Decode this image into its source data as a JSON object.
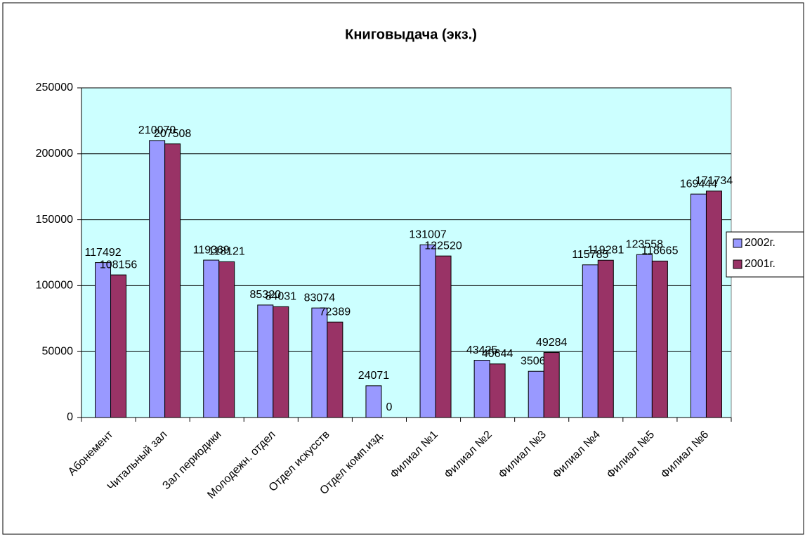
{
  "chart_data": {
    "type": "bar",
    "title": "Книговыдача (экз.)",
    "categories": [
      "Абонемент",
      "Читальный зал",
      "Зал периодики",
      "Молодежн. отдел",
      "Отдел искусств",
      "Отдел комп.изд.",
      "Филиал №1",
      "Филиал №2",
      "Филиал №3",
      "Филиал №4",
      "Филиал №5",
      "Филиал №6"
    ],
    "series": [
      {
        "name": "2002г.",
        "color": "#9999ff",
        "values": [
          117492,
          210070,
          119369,
          85320,
          83074,
          24071,
          131007,
          43425,
          35061,
          115785,
          123558,
          169444
        ]
      },
      {
        "name": "2001г.",
        "color": "#993366",
        "values": [
          108156,
          207508,
          118121,
          84031,
          72389,
          0,
          122520,
          40644,
          49284,
          119281,
          118665,
          171734
        ]
      }
    ],
    "ylim": [
      0,
      250000
    ],
    "yticks": [
      0,
      50000,
      100000,
      150000,
      200000,
      250000
    ],
    "grid": true,
    "legend": "right",
    "plot_background": "#ccffff"
  }
}
